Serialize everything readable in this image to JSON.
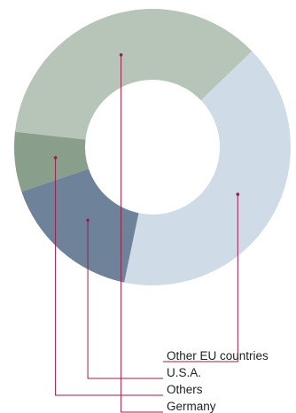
{
  "chart_data": {
    "type": "pie",
    "donut": true,
    "title": "",
    "slices": [
      {
        "label": "Other EU countries",
        "value": 40.5,
        "color": "#cfdce7"
      },
      {
        "label": "U.S.A.",
        "value": 16.5,
        "color": "#6e8299"
      },
      {
        "label": "Others",
        "value": 7.0,
        "color": "#8a9f8b"
      },
      {
        "label": "Germany",
        "value": 36.0,
        "color": "#b7c4b8"
      }
    ],
    "legend_order": [
      "Other EU countries",
      "U.S.A.",
      "Others",
      "Germany"
    ],
    "leader_line_color": "#9b1d4d"
  }
}
